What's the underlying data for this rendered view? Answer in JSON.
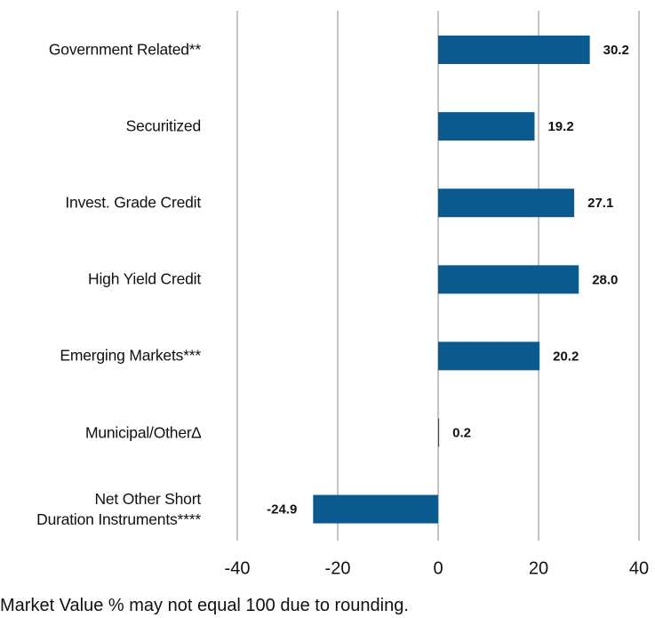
{
  "chart_data": {
    "type": "barh",
    "categories": [
      "Government Related**",
      "Securitized",
      "Invest. Grade Credit",
      "High Yield Credit",
      "Emerging Markets***",
      "Municipal/Other∆",
      "Net Other Short\nDuration Instruments****"
    ],
    "values": [
      30.2,
      19.2,
      27.1,
      28.0,
      20.2,
      0.2,
      -24.9
    ],
    "value_labels": [
      "30.2",
      "19.2",
      "27.1",
      "28.0",
      "20.2",
      "0.2",
      "-24.9"
    ],
    "color": "#0b5a8f",
    "xlim": [
      -40,
      40
    ],
    "xticks": [
      -40,
      -20,
      0,
      20,
      40
    ],
    "grid": true,
    "note": "Market Value % may not equal 100 due to rounding."
  }
}
